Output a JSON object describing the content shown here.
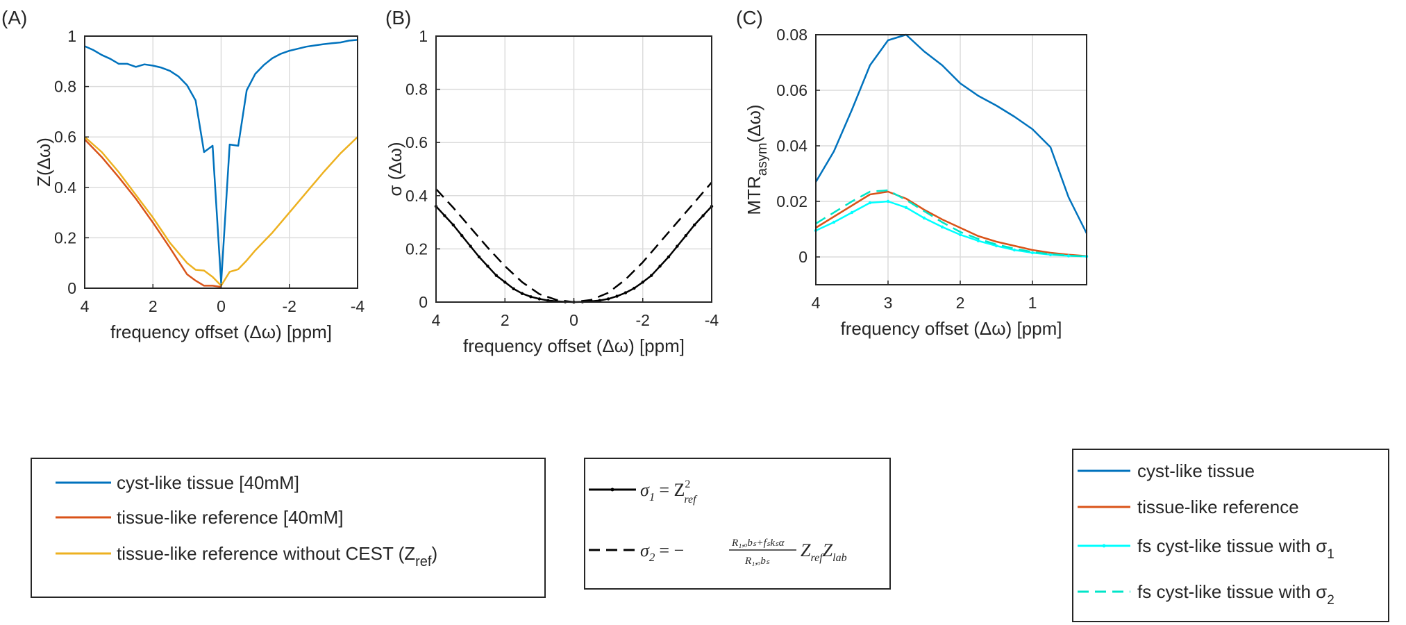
{
  "chart_data": [
    {
      "panel_label": "(A)",
      "type": "line",
      "xlabel": "frequency offset (Δω) [ppm]",
      "ylabel": "Z(Δω)",
      "xlim": [
        4,
        -4
      ],
      "ylim": [
        0,
        1
      ],
      "x_reversed": true,
      "xticks": [
        4,
        2,
        0,
        -2,
        -4
      ],
      "yticks": [
        0,
        0.2,
        0.4,
        0.6,
        0.8,
        1
      ],
      "xtick_labels": [
        "4",
        "2",
        "0",
        "-2",
        "-4"
      ],
      "ytick_labels": [
        "0",
        "0.2",
        "0.4",
        "0.6",
        "0.8",
        "1"
      ],
      "grid": true,
      "legend_position": "below",
      "series": [
        {
          "name": "cyst-like tissue [40mM]",
          "color": "#0072BD",
          "x": [
            4,
            3.75,
            3.5,
            3.25,
            3,
            2.75,
            2.5,
            2.25,
            2,
            1.75,
            1.5,
            1.25,
            1,
            0.75,
            0.5,
            0.25,
            0,
            -0.25,
            -0.5,
            -0.75,
            -1,
            -1.25,
            -1.5,
            -1.75,
            -2,
            -2.25,
            -2.5,
            -2.75,
            -3,
            -3.25,
            -3.5,
            -3.75,
            -4
          ],
          "y": [
            0.96,
            0.945,
            0.925,
            0.91,
            0.89,
            0.89,
            0.878,
            0.888,
            0.883,
            0.875,
            0.862,
            0.84,
            0.805,
            0.745,
            0.54,
            0.565,
            0.02,
            0.57,
            0.565,
            0.785,
            0.85,
            0.885,
            0.912,
            0.93,
            0.942,
            0.95,
            0.958,
            0.963,
            0.968,
            0.972,
            0.975,
            0.982,
            0.985
          ]
        },
        {
          "name": "tissue-like reference [40mM]",
          "color": "#D95319",
          "x": [
            4,
            3.5,
            3,
            2.5,
            2,
            1.5,
            1,
            0.75,
            0.5,
            0.25,
            0
          ],
          "y": [
            0.59,
            0.52,
            0.44,
            0.355,
            0.26,
            0.16,
            0.055,
            0.03,
            0.01,
            0.01,
            0.005
          ]
        },
        {
          "name": "tissue-like reference without CEST (Z_ref)",
          "color": "#EDB120",
          "x": [
            4,
            3.5,
            3,
            2.5,
            2,
            1.75,
            1.5,
            1.25,
            1,
            0.75,
            0.5,
            0.25,
            0,
            -0.25,
            -0.5,
            -0.75,
            -1,
            -1.5,
            -2,
            -2.5,
            -3,
            -3.5,
            -4
          ],
          "y": [
            0.6,
            0.54,
            0.46,
            0.37,
            0.28,
            0.23,
            0.18,
            0.14,
            0.1,
            0.073,
            0.07,
            0.045,
            0.01,
            0.065,
            0.075,
            0.11,
            0.15,
            0.22,
            0.3,
            0.38,
            0.46,
            0.535,
            0.6
          ]
        }
      ]
    },
    {
      "panel_label": "(B)",
      "type": "line",
      "xlabel": "frequency offset (Δω) [ppm]",
      "ylabel": "σ (Δω)",
      "xlim": [
        4,
        -4
      ],
      "ylim": [
        0,
        1
      ],
      "x_reversed": true,
      "xticks": [
        4,
        2,
        0,
        -2,
        -4
      ],
      "yticks": [
        0,
        0.2,
        0.4,
        0.6,
        0.8,
        1
      ],
      "xtick_labels": [
        "4",
        "2",
        "0",
        "-2",
        "-4"
      ],
      "ytick_labels": [
        "0",
        "0.2",
        "0.4",
        "0.6",
        "0.8",
        "1"
      ],
      "grid": true,
      "legend_position": "below",
      "series": [
        {
          "name": "σ1 = Z²ref",
          "color": "#000000",
          "dash": "solid",
          "marker": "point",
          "x": [
            4,
            3.75,
            3.5,
            3.25,
            3,
            2.75,
            2.5,
            2.25,
            2,
            1.75,
            1.5,
            1.25,
            1,
            0.75,
            0.5,
            0.25,
            0,
            -0.25,
            -0.5,
            -0.75,
            -1,
            -1.25,
            -1.5,
            -1.75,
            -2,
            -2.25,
            -2.5,
            -2.75,
            -3,
            -3.25,
            -3.5,
            -3.75,
            -4
          ],
          "y": [
            0.36,
            0.325,
            0.29,
            0.25,
            0.21,
            0.17,
            0.135,
            0.1,
            0.075,
            0.05,
            0.032,
            0.02,
            0.012,
            0.006,
            0.003,
            0.001,
            0.0,
            0.001,
            0.003,
            0.006,
            0.012,
            0.022,
            0.035,
            0.052,
            0.075,
            0.1,
            0.135,
            0.17,
            0.21,
            0.25,
            0.29,
            0.325,
            0.36
          ]
        },
        {
          "name": "σ2 = −((R1,obs + fs ks α) / R1,obs) Zref Zlab",
          "color": "#000000",
          "dash": "dashed",
          "x": [
            4,
            3.5,
            3,
            2.5,
            2,
            1.5,
            1,
            0.5,
            0,
            -0.5,
            -1,
            -1.5,
            -2,
            -2.5,
            -3,
            -3.5,
            -4
          ],
          "y": [
            0.425,
            0.355,
            0.28,
            0.205,
            0.135,
            0.075,
            0.03,
            0.008,
            0.0,
            0.008,
            0.035,
            0.085,
            0.15,
            0.225,
            0.3,
            0.375,
            0.45
          ]
        }
      ]
    },
    {
      "panel_label": "(C)",
      "type": "line",
      "xlabel": "frequency offset (Δω) [ppm]",
      "ylabel_main": "MTR",
      "ylabel_sub": "asym",
      "ylabel_tail": "(Δω)",
      "xlim": [
        4,
        0.25
      ],
      "ylim": [
        -0.01,
        0.08
      ],
      "x_reversed": true,
      "xticks": [
        4,
        3,
        2,
        1
      ],
      "yticks": [
        0,
        0.02,
        0.04,
        0.06,
        0.08
      ],
      "xtick_labels": [
        "4",
        "3",
        "2",
        "1"
      ],
      "ytick_labels": [
        "0",
        "0.02",
        "0.04",
        "0.06",
        "0.08"
      ],
      "grid": true,
      "legend_position": "below",
      "series": [
        {
          "name": "cyst-like tissue",
          "color": "#0072BD",
          "dash": "solid",
          "x": [
            4,
            3.75,
            3.5,
            3.25,
            3,
            2.75,
            2.5,
            2.25,
            2,
            1.75,
            1.5,
            1.25,
            1,
            0.75,
            0.5,
            0.25
          ],
          "y": [
            0.027,
            0.038,
            0.053,
            0.069,
            0.078,
            0.08,
            0.074,
            0.069,
            0.0625,
            0.058,
            0.0545,
            0.0505,
            0.046,
            0.0395,
            0.0215,
            0.0085
          ]
        },
        {
          "name": "tissue-like reference",
          "color": "#D95319",
          "dash": "solid",
          "x": [
            4,
            3.75,
            3.5,
            3.25,
            3,
            2.75,
            2.5,
            2.25,
            2,
            1.75,
            1.5,
            1.25,
            1,
            0.75,
            0.5,
            0.25
          ],
          "y": [
            0.0105,
            0.0145,
            0.0185,
            0.0225,
            0.0235,
            0.021,
            0.017,
            0.0135,
            0.0105,
            0.0075,
            0.0055,
            0.004,
            0.0025,
            0.0015,
            0.0008,
            0.0003
          ]
        },
        {
          "name": "fs cyst-like tissue with σ1",
          "color": "#00FFFF",
          "dash": "solid",
          "marker": "point",
          "x": [
            4,
            3.75,
            3.5,
            3.25,
            3,
            2.75,
            2.5,
            2.25,
            2,
            1.75,
            1.5,
            1.25,
            1,
            0.75,
            0.5,
            0.25
          ],
          "y": [
            0.0095,
            0.0125,
            0.016,
            0.0195,
            0.02,
            0.0178,
            0.014,
            0.0108,
            0.008,
            0.0058,
            0.004,
            0.0025,
            0.0015,
            0.0008,
            0.0004,
            0.0002
          ]
        },
        {
          "name": "fs cyst-like tissue with σ2",
          "color": "#00E5C8",
          "dash": "dashed",
          "x": [
            4,
            3.75,
            3.5,
            3.25,
            3,
            2.75,
            2.5,
            2.25,
            2,
            1.75,
            1.5,
            1.25,
            1,
            0.75,
            0.5,
            0.25
          ],
          "y": [
            0.012,
            0.016,
            0.02,
            0.0235,
            0.024,
            0.0205,
            0.0165,
            0.0125,
            0.009,
            0.0065,
            0.0045,
            0.003,
            0.0018,
            0.001,
            0.0005,
            0.0002
          ]
        }
      ]
    }
  ],
  "legends": {
    "A": [
      "cyst-like tissue [40mM]",
      "tissue-like reference [40mM]",
      "tissue-like reference without CEST (Z",
      "ref",
      ")"
    ],
    "B": {
      "sigma1": "σ",
      "sigma1_sub": "1",
      "sigma1_rhs": "= Z",
      "sigma1_sup": "2",
      "sigma1_sub2": "ref",
      "sigma2": "σ",
      "sigma2_sub": "2",
      "sigma2_eq": "= −",
      "sigma2_num": "R₁,ₒbₛ+fₛkₛα",
      "sigma2_den": "R₁,ₒbₛ",
      "sigma2_tail": "Z",
      "sigma2_tail_sub1": "ref",
      "sigma2_tail2": "Z",
      "sigma2_tail_sub2": "lab"
    },
    "C": [
      "cyst-like tissue",
      "tissue-like reference",
      "fs cyst-like tissue with σ",
      "1",
      "fs cyst-like tissue with σ",
      "2"
    ]
  }
}
